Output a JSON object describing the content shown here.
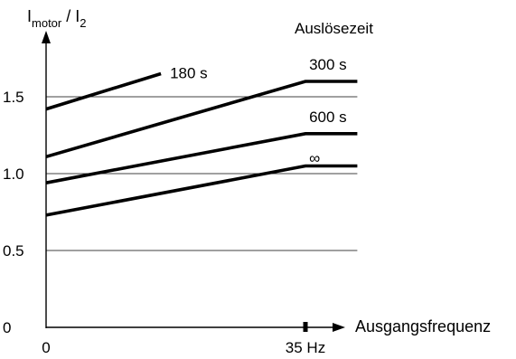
{
  "chart_data": {
    "type": "line",
    "ylabel": {
      "main": "I",
      "sub1": "motor",
      "mid": " / I",
      "sub2": "2"
    },
    "xlabel": "Ausgangsfrequenz",
    "legend_title": "Auslösezeit",
    "xlim": [
      0,
      42
    ],
    "ylim": [
      0,
      1.95
    ],
    "y_ticks": [
      {
        "value": 0,
        "label": "0",
        "grid": false
      },
      {
        "value": 0.5,
        "label": "0.5",
        "grid": true
      },
      {
        "value": 1.0,
        "label": "1.0",
        "grid": true
      },
      {
        "value": 1.5,
        "label": "1.5",
        "grid": true
      }
    ],
    "x_ticks": [
      {
        "value": 0,
        "label": "0"
      },
      {
        "value": 35,
        "label": "35 Hz"
      }
    ],
    "grid_extent_x": 42,
    "series": [
      {
        "name": "180 s",
        "points": [
          [
            0,
            1.42
          ],
          [
            15.5,
            1.65
          ]
        ]
      },
      {
        "name": "300 s",
        "points": [
          [
            0,
            1.11
          ],
          [
            35,
            1.6
          ],
          [
            42,
            1.6
          ]
        ]
      },
      {
        "name": "600 s",
        "points": [
          [
            0,
            0.94
          ],
          [
            35,
            1.26
          ],
          [
            42,
            1.26
          ]
        ]
      },
      {
        "name": "∞",
        "points": [
          [
            0,
            0.73
          ],
          [
            35,
            1.05
          ],
          [
            42,
            1.05
          ]
        ]
      }
    ]
  }
}
